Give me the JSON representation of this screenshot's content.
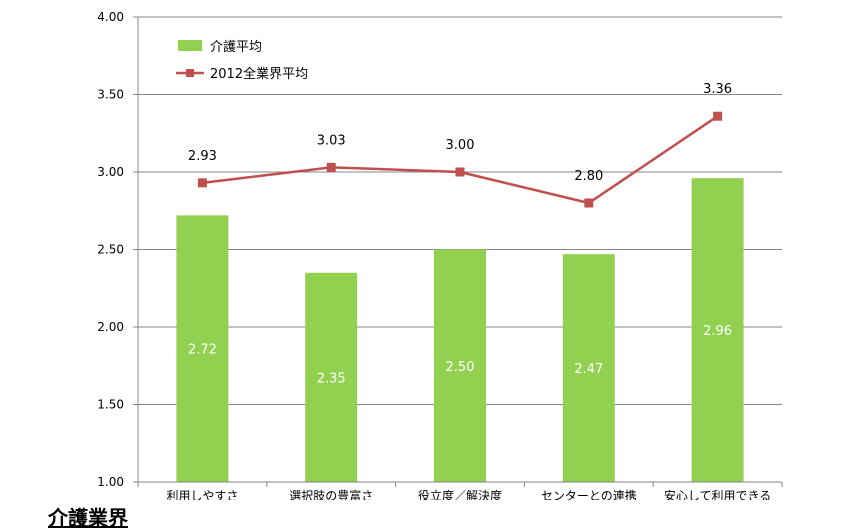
{
  "chart_data": {
    "type": "bar",
    "categories": [
      "利用しやすさ",
      "選択肢の豊富さ",
      "役立度／解決度",
      "センターとの連携",
      "安心して利用できる"
    ],
    "series": [
      {
        "name": "介護平均",
        "type": "bar",
        "values": [
          2.72,
          2.35,
          2.5,
          2.47,
          2.96
        ],
        "labels": [
          "2.72",
          "2.35",
          "2.50",
          "2.47",
          "2.96"
        ],
        "color": "#92d050"
      },
      {
        "name": "2012全業界平均",
        "type": "line",
        "values": [
          2.93,
          3.03,
          3.0,
          2.8,
          3.36
        ],
        "labels": [
          "2.93",
          "3.03",
          "3.00",
          "2.80",
          "3.36"
        ],
        "color": "#c0504d"
      }
    ],
    "ylim": [
      1.0,
      4.0
    ],
    "yticks": [
      "1.00",
      "1.50",
      "2.00",
      "2.50",
      "3.00",
      "3.50",
      "4.00"
    ],
    "grid": true,
    "legend_position": "top-left"
  },
  "footer_title": "介護業界"
}
